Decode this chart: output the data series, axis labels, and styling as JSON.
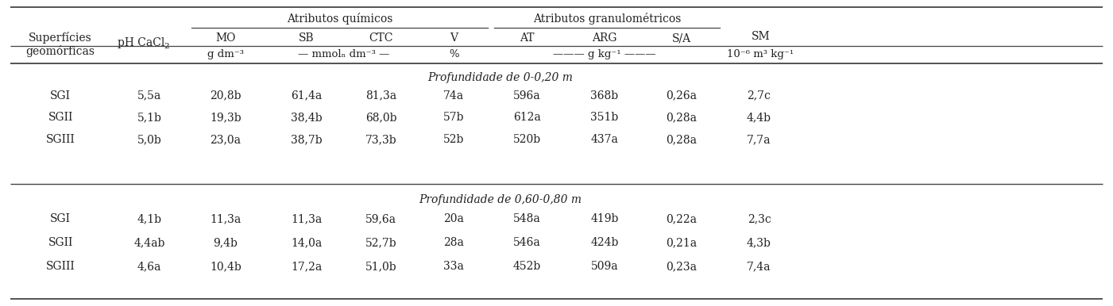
{
  "section1_label": "Profundidade de 0-0,20 m",
  "section2_label": "Profundidade de 0,60-0,80 m",
  "data_section1": [
    [
      "SGI",
      "5,5a",
      "20,8b",
      "61,4a",
      "81,3a",
      "74a",
      "596a",
      "368b",
      "0,26a",
      "2,7c"
    ],
    [
      "SGII",
      "5,1b",
      "19,3b",
      "38,4b",
      "68,0b",
      "57b",
      "612a",
      "351b",
      "0,28a",
      "4,4b"
    ],
    [
      "SGIII",
      "5,0b",
      "23,0a",
      "38,7b",
      "73,3b",
      "52b",
      "520b",
      "437a",
      "0,28a",
      "7,7a"
    ]
  ],
  "data_section2": [
    [
      "SGI",
      "4,1b",
      "11,3a",
      "11,3a",
      "59,6a",
      "20a",
      "548a",
      "419b",
      "0,22a",
      "2,3c"
    ],
    [
      "SGII",
      "4,4ab",
      "9,4b",
      "14,0a",
      "52,7b",
      "28a",
      "546a",
      "424b",
      "0,21a",
      "4,3b"
    ],
    [
      "SGIII",
      "4,6a",
      "10,4b",
      "17,2a",
      "51,0b",
      "33a",
      "452b",
      "509a",
      "0,23a",
      "7,4a"
    ]
  ],
  "bg_color": "#ffffff",
  "text_color": "#222222",
  "line_color": "#444444",
  "font_size": 10.0
}
